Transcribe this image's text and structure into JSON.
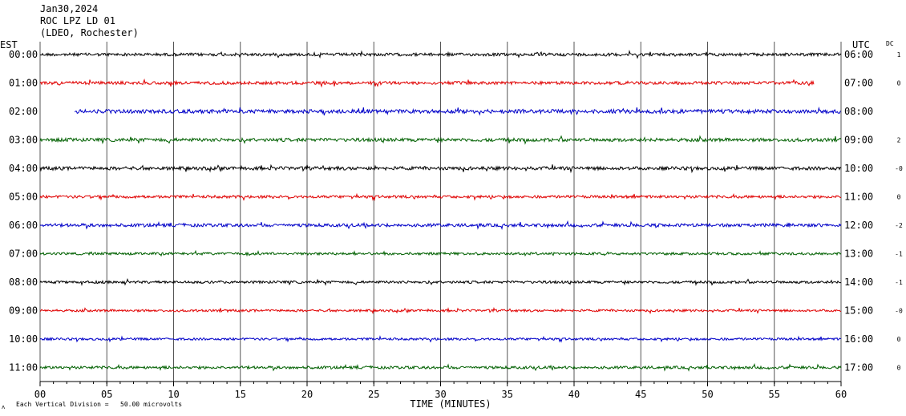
{
  "header": {
    "date": "Jan30,2024",
    "station": "ROC LPZ LD 01",
    "network": "(LDEO, Rochester)"
  },
  "left_axis_label": "EST",
  "right_axis_label": "UTC",
  "dc_label": "DC",
  "x_axis_label": "TIME (MINUTES)",
  "footer_note": "Each Vertical Division =   50.00 microvolts",
  "colors": {
    "trace_cycle": [
      "#000000",
      "#e00000",
      "#0000c8",
      "#006000"
    ],
    "grid": "#555555",
    "text": "#000000"
  },
  "chart_data": {
    "type": "helicorder",
    "xlabel": "TIME (MINUTES)",
    "xlim": [
      0,
      60
    ],
    "x_ticks": [
      "00",
      "05",
      "10",
      "15",
      "20",
      "25",
      "30",
      "35",
      "40",
      "45",
      "50",
      "55",
      "60"
    ],
    "rows": [
      {
        "est": "00:00",
        "utc": "06:00",
        "dc": "1",
        "start_min": 0,
        "end_min": 60,
        "amplitude": 0.7
      },
      {
        "est": "01:00",
        "utc": "07:00",
        "dc": "0",
        "start_min": 0,
        "end_min": 58,
        "amplitude": 0.75
      },
      {
        "est": "02:00",
        "utc": "08:00",
        "dc": "",
        "start_min": 2.6,
        "end_min": 60,
        "amplitude": 0.9
      },
      {
        "est": "03:00",
        "utc": "09:00",
        "dc": "2",
        "start_min": 0,
        "end_min": 60,
        "amplitude": 0.8
      },
      {
        "est": "04:00",
        "utc": "10:00",
        "dc": "-0",
        "start_min": 0,
        "end_min": 60,
        "amplitude": 0.8
      },
      {
        "est": "05:00",
        "utc": "11:00",
        "dc": "0",
        "start_min": 0,
        "end_min": 60,
        "amplitude": 0.65
      },
      {
        "est": "06:00",
        "utc": "12:00",
        "dc": "-2",
        "start_min": 0,
        "end_min": 60,
        "amplitude": 0.75
      },
      {
        "est": "07:00",
        "utc": "13:00",
        "dc": "-1",
        "start_min": 0,
        "end_min": 60,
        "amplitude": 0.6
      },
      {
        "est": "08:00",
        "utc": "14:00",
        "dc": "-1",
        "start_min": 0,
        "end_min": 60,
        "amplitude": 0.6
      },
      {
        "est": "09:00",
        "utc": "15:00",
        "dc": "-0",
        "start_min": 0,
        "end_min": 60,
        "amplitude": 0.55
      },
      {
        "est": "10:00",
        "utc": "16:00",
        "dc": "0",
        "start_min": 0,
        "end_min": 60,
        "amplitude": 0.55
      },
      {
        "est": "11:00",
        "utc": "17:00",
        "dc": "0",
        "start_min": 0,
        "end_min": 60,
        "amplitude": 0.65
      }
    ]
  }
}
